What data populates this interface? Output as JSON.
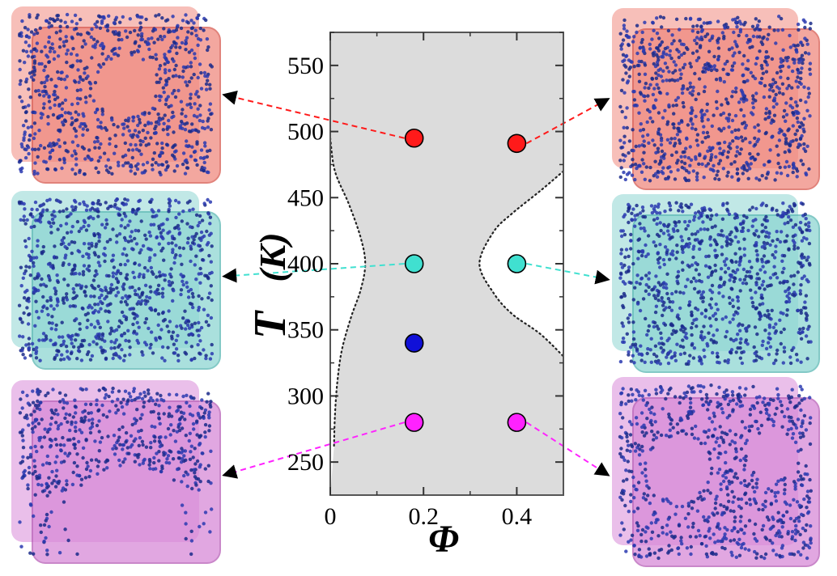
{
  "chart_data": {
    "type": "scatter",
    "xlabel": "Φ",
    "ylabel_symbol": "T",
    "ylabel_unit": "(K)",
    "xlim": [
      0,
      0.5
    ],
    "ylim": [
      225,
      575
    ],
    "x_ticks": [
      0,
      0.2,
      0.4
    ],
    "x_tick_labels": [
      "0",
      "0.2",
      "0.4"
    ],
    "y_ticks": [
      250,
      300,
      350,
      400,
      450,
      500,
      550
    ],
    "y_tick_labels": [
      "250",
      "300",
      "350",
      "400",
      "450",
      "500",
      "550"
    ],
    "grid": false,
    "points": [
      {
        "x": 0.18,
        "y": 495,
        "color": "#ff1a1a"
      },
      {
        "x": 0.4,
        "y": 491,
        "color": "#ff1a1a"
      },
      {
        "x": 0.18,
        "y": 400,
        "color": "#40e0d0"
      },
      {
        "x": 0.4,
        "y": 400,
        "color": "#40e0d0"
      },
      {
        "x": 0.18,
        "y": 340,
        "color": "#1010d8"
      },
      {
        "x": 0.18,
        "y": 280,
        "color": "#ff22ff"
      },
      {
        "x": 0.4,
        "y": 280,
        "color": "#ff22ff"
      }
    ],
    "boundary_left": [
      [
        0.0,
        495
      ],
      [
        0.01,
        470
      ],
      [
        0.04,
        445
      ],
      [
        0.065,
        420
      ],
      [
        0.075,
        400
      ],
      [
        0.065,
        380
      ],
      [
        0.045,
        360
      ],
      [
        0.025,
        335
      ],
      [
        0.015,
        310
      ],
      [
        0.01,
        285
      ],
      [
        0.008,
        262
      ]
    ],
    "boundary_right": [
      [
        0.5,
        470
      ],
      [
        0.45,
        455
      ],
      [
        0.39,
        438
      ],
      [
        0.35,
        424
      ],
      [
        0.32,
        400
      ],
      [
        0.35,
        378
      ],
      [
        0.39,
        362
      ],
      [
        0.45,
        347
      ],
      [
        0.5,
        330
      ]
    ],
    "region_colors": {
      "shaded": "#dcdcdc",
      "clear": "#ffffff"
    },
    "snapshots": [
      {
        "side": "left",
        "point": 0,
        "tint": "#f08a80",
        "edge": "#d85a50"
      },
      {
        "side": "left",
        "point": 2,
        "tint": "#8ed6d2",
        "edge": "#5ab8b4"
      },
      {
        "side": "left",
        "point": 5,
        "tint": "#d88ad8",
        "edge": "#b860b8"
      },
      {
        "side": "right",
        "point": 1,
        "tint": "#f08a80",
        "edge": "#d85a50"
      },
      {
        "side": "right",
        "point": 3,
        "tint": "#8ed6d2",
        "edge": "#5ab8b4"
      },
      {
        "side": "right",
        "point": 6,
        "tint": "#d88ad8",
        "edge": "#b860b8"
      }
    ]
  }
}
